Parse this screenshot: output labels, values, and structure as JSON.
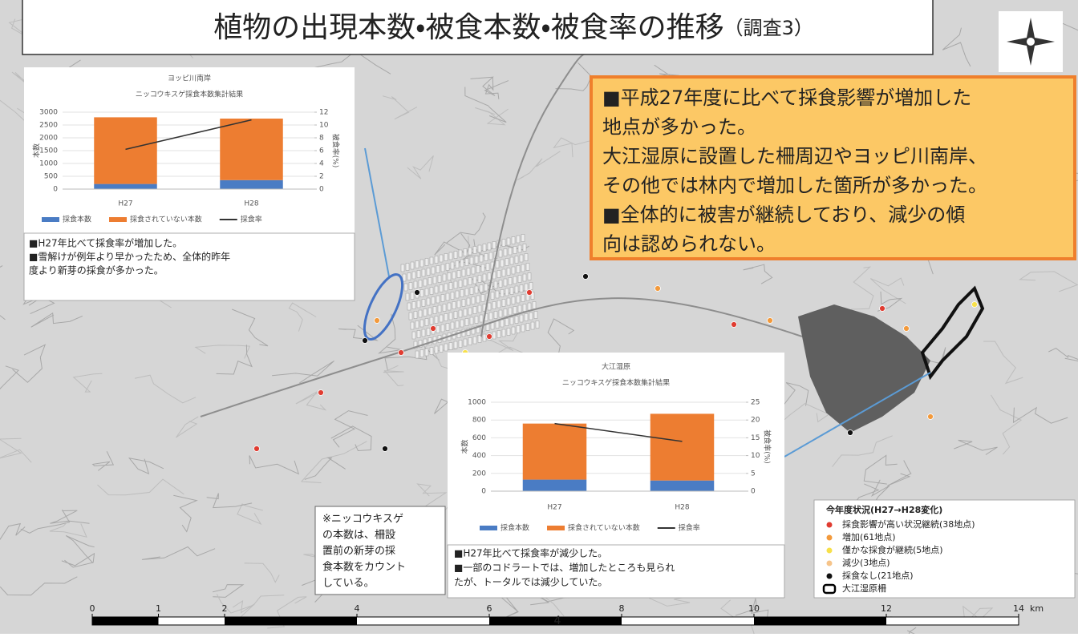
{
  "title": "植物の出現本数・被食本数・被食率の推移",
  "title_note": "（調査3）",
  "summary_lines": [
    "■平成27年度に比べて採食影響が増加した",
    "地点が多かった。",
    "大江湿原に設置した柵周辺やヨッピ川南岸、",
    "その他では林内で増加した箇所が多かった。",
    "■全体的に被害が継続しており、減少の傾",
    "向は認められない。"
  ],
  "chart_data": [
    {
      "type": "bar",
      "stacked": true,
      "title": "ヨッピ川南岸",
      "subtitle": "ニッコウキスゲ採食本数集計結果",
      "y_label": "本数",
      "y2_label": "被食率(%)",
      "categories": [
        "H27",
        "H28"
      ],
      "ylim": [
        0,
        3000
      ],
      "yticks": [
        0,
        500,
        1000,
        1500,
        2000,
        2500,
        3000
      ],
      "y2lim": [
        0,
        12
      ],
      "y2ticks": [
        0,
        2,
        4,
        6,
        8,
        10,
        12
      ],
      "series": [
        {
          "name": "採食本数",
          "color": "#4a7cc4",
          "values": [
            200,
            350
          ]
        },
        {
          "name": "採食されていない本数",
          "color": "#ed7d31",
          "values": [
            2600,
            2400
          ]
        },
        {
          "name": "採食率",
          "color": "#333333",
          "axis": "y2",
          "values": [
            6.2,
            10.8
          ]
        }
      ],
      "notes": [
        "■H27年比べて採食率が増加した。",
        "■雪解けが例年より早かったため、全体的昨年",
        "度より新芽の採食が多かった。"
      ]
    },
    {
      "type": "bar",
      "stacked": true,
      "title": "大江湿原",
      "subtitle": "ニッコウキスゲ採食本数集計結果",
      "y_label": "本数",
      "y2_label": "被食率(%)",
      "categories": [
        "H27",
        "H28"
      ],
      "ylim": [
        0,
        1000
      ],
      "yticks": [
        0,
        200,
        400,
        600,
        800,
        1000
      ],
      "y2lim": [
        0,
        25
      ],
      "y2ticks": [
        0,
        5,
        10,
        15,
        20,
        25
      ],
      "series": [
        {
          "name": "採食本数",
          "color": "#4a7cc4",
          "values": [
            130,
            120
          ]
        },
        {
          "name": "採食されていない本数",
          "color": "#ed7d31",
          "values": [
            630,
            750
          ]
        },
        {
          "name": "採食率",
          "color": "#333333",
          "axis": "y2",
          "values": [
            19,
            14
          ]
        }
      ],
      "notes": [
        "■H27年比べて採食率が減少した。",
        "■一部のコドラートでは、増加したところも見られ",
        "たが、トータルでは減少していた。"
      ]
    }
  ],
  "side_note_lines": [
    "※ニッコウキスゲ",
    "の本数は、柵設",
    "置前の新芽の採",
    "食本数をカウント",
    "している。"
  ],
  "map_legend": {
    "title": "今年度状況(H27→H28変化)",
    "items": [
      {
        "label": "採食影響が高い状況継続(38地点)",
        "color": "#e03c31"
      },
      {
        "label": "増加(61地点)",
        "color": "#f39a3c"
      },
      {
        "label": "僅かな採食が継続(5地点)",
        "color": "#f7e04a"
      },
      {
        "label": "減少(3地点)",
        "color": "#f6c48a"
      },
      {
        "label": "採食なし(21地点)",
        "color": "#111111"
      },
      {
        "label": "大江湿原柵",
        "color": "#000000"
      }
    ]
  },
  "scale_bar": {
    "ticks": [
      0,
      1,
      2,
      4,
      6,
      8,
      10,
      12,
      14
    ],
    "unit": "km"
  },
  "page_number": "4"
}
